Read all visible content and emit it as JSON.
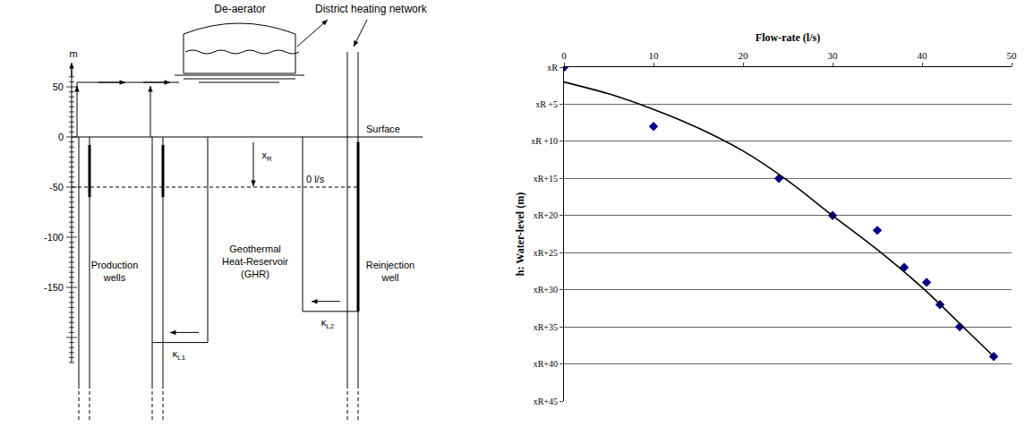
{
  "diagram": {
    "scale": {
      "unit": "m",
      "ticks": [
        50,
        0,
        -50,
        -100,
        -150
      ]
    },
    "labels": {
      "deaerator": "De-aerator",
      "network": "District heating network",
      "surface": "Surface",
      "level": "xR",
      "level_flow": "0 l/s",
      "reservoir": "Geothermal Heat-Reservoir (GHR)",
      "production": "Production wells",
      "reinjection": "Reinjection well",
      "k1": "κL1",
      "k2": "κL2"
    }
  },
  "chart_data": {
    "type": "scatter",
    "x_label": "Flow-rate (l/s)",
    "y_label": "h: Water-level (m)",
    "xlim": [
      0,
      50
    ],
    "xticks": [
      0,
      10,
      20,
      30,
      40,
      50
    ],
    "ylim": [
      45,
      0
    ],
    "yticks": [
      {
        "value": 0,
        "label": "xR"
      },
      {
        "value": 5,
        "label": "xR +5"
      },
      {
        "value": 10,
        "label": "xR +10"
      },
      {
        "value": 15,
        "label": "xR+15"
      },
      {
        "value": 20,
        "label": "xR+20"
      },
      {
        "value": 25,
        "label": "xR+25"
      },
      {
        "value": 30,
        "label": "xR+30"
      },
      {
        "value": 35,
        "label": "xR+35"
      },
      {
        "value": 40,
        "label": "xR+40"
      },
      {
        "value": 45,
        "label": "xR+45"
      }
    ],
    "grid": "y",
    "series": [
      {
        "type": "scatter",
        "marker": "diamond",
        "color": "#00008b",
        "x": [
          0,
          10,
          24,
          30,
          35,
          38,
          40.5,
          42,
          44.2,
          48
        ],
        "values": [
          0,
          8,
          15,
          20,
          22,
          27,
          29,
          32,
          35,
          39
        ]
      },
      {
        "type": "line",
        "line_style": "solid",
        "color": "#000000",
        "x": [
          0,
          5,
          10,
          15,
          20,
          25,
          30,
          35,
          40,
          45,
          48
        ],
        "values": [
          2,
          3.6,
          5.7,
          8.2,
          11.3,
          15.3,
          20,
          24.6,
          29.7,
          35.5,
          39
        ]
      }
    ]
  }
}
